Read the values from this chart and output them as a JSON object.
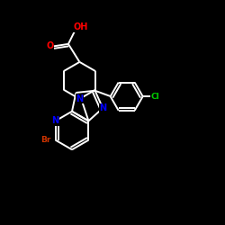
{
  "bg": "#000000",
  "white": "#ffffff",
  "red": "#ff0000",
  "blue": "#0000ff",
  "br_color": "#cc3300",
  "cl_color": "#00cc00",
  "figsize": [
    2.5,
    2.5
  ],
  "dpi": 100,
  "xlim": [
    0,
    10
  ],
  "ylim": [
    0,
    10
  ]
}
